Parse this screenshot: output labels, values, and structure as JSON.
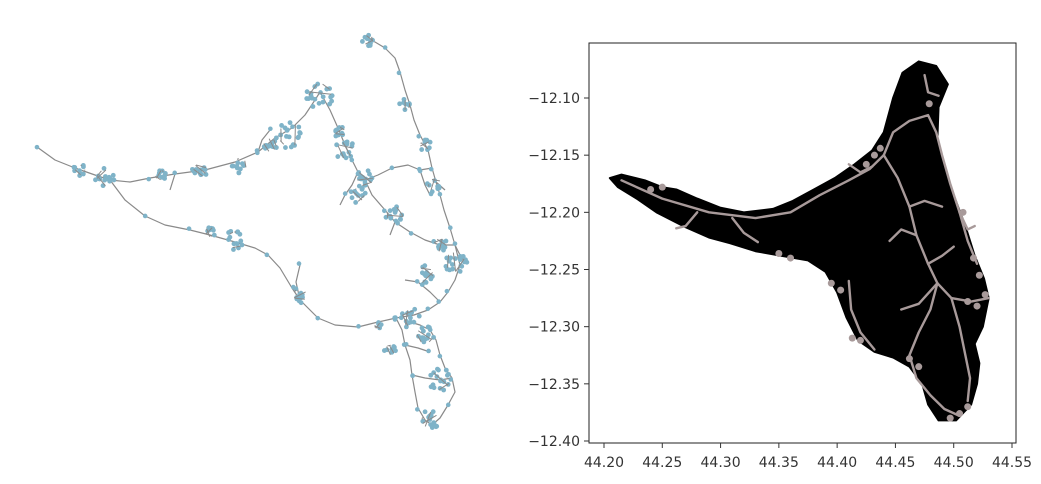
{
  "chart_data": [
    {
      "type": "network",
      "title": "",
      "axes_visible": false,
      "node_color": "#7fb3c8",
      "edge_color": "#8a8a8a"
    },
    {
      "type": "area",
      "title": "",
      "xlabel": "",
      "ylabel": "",
      "xlim": [
        44.2,
        44.55
      ],
      "ylim": [
        -12.4,
        -12.06
      ],
      "x_ticks": [
        "44.20",
        "44.25",
        "44.30",
        "44.35",
        "44.40",
        "44.45",
        "44.50",
        "44.55"
      ],
      "y_ticks": [
        "-12.10",
        "-12.15",
        "-12.20",
        "-12.25",
        "-12.30",
        "-12.35",
        "-12.40"
      ],
      "fill_color": "#000000",
      "road_color": "#a89a9a",
      "grid": false
    }
  ]
}
